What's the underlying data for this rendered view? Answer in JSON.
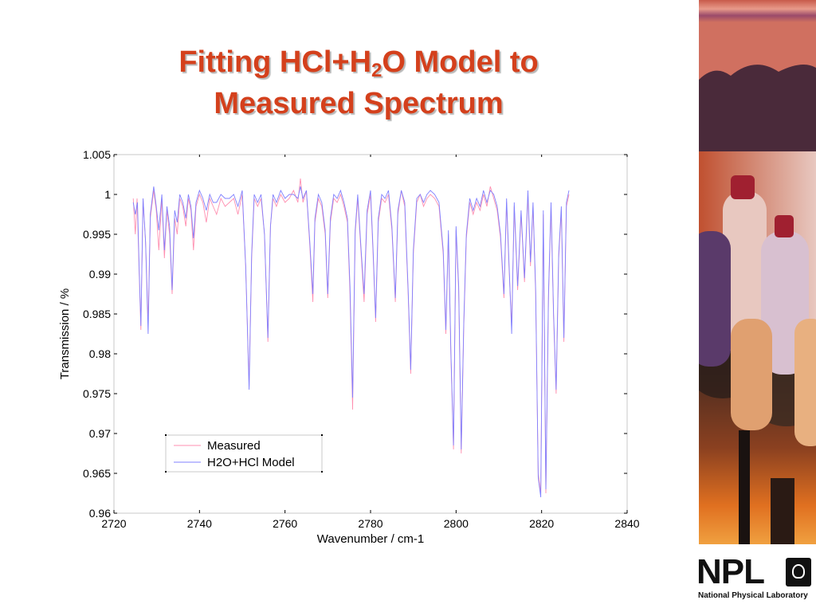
{
  "slide": {
    "title_pre": "Fitting HCl+H",
    "title_sub": "2",
    "title_post": "O Model to",
    "title_line2": "Measured Spectrum"
  },
  "logo": {
    "text": "NPL",
    "subtitle": "National Physical Laboratory"
  },
  "photo": {
    "icon": "gas-cylinders-photo"
  },
  "colors": {
    "title": "#d4401c",
    "measured": "#ff8fb0",
    "model": "#8080ff",
    "axis": "#000000"
  },
  "chart_data": {
    "type": "line",
    "title": "",
    "xlabel": "Wavenumber / cm-1",
    "ylabel": "Transmission / %",
    "xlim": [
      2720,
      2840
    ],
    "ylim": [
      0.96,
      1.005
    ],
    "xticks": [
      "2720",
      "2740",
      "2760",
      "2780",
      "2800",
      "2820",
      "2840"
    ],
    "yticks": [
      "1.005",
      "1",
      "0.995",
      "0.99",
      "0.985",
      "0.98",
      "0.975",
      "0.97",
      "0.965",
      "0.96"
    ],
    "grid": false,
    "legend_position": "lower-left",
    "series": [
      {
        "name": "Measured",
        "color": "#ff8fb0",
        "points": [
          [
            2724.5,
            0.9995
          ],
          [
            2725.0,
            0.995
          ],
          [
            2725.4,
            0.9995
          ],
          [
            2725.9,
            0.99
          ],
          [
            2726.3,
            0.983
          ],
          [
            2726.8,
            0.9995
          ],
          [
            2727.4,
            0.994
          ],
          [
            2728.0,
            0.984
          ],
          [
            2728.5,
            0.997
          ],
          [
            2729.3,
            1.0005
          ],
          [
            2729.9,
            0.998
          ],
          [
            2730.5,
            0.993
          ],
          [
            2731.2,
            0.9995
          ],
          [
            2731.8,
            0.992
          ],
          [
            2732.4,
            0.998
          ],
          [
            2733.0,
            0.995
          ],
          [
            2733.6,
            0.9875
          ],
          [
            2734.2,
            0.997
          ],
          [
            2734.8,
            0.995
          ],
          [
            2735.4,
            0.9995
          ],
          [
            2736.1,
            0.9985
          ],
          [
            2736.8,
            0.996
          ],
          [
            2737.4,
            0.9995
          ],
          [
            2738.0,
            0.998
          ],
          [
            2738.6,
            0.993
          ],
          [
            2739.2,
            0.9985
          ],
          [
            2740.0,
            1.0
          ],
          [
            2740.8,
            0.999
          ],
          [
            2741.6,
            0.9965
          ],
          [
            2742.4,
            0.9995
          ],
          [
            2743.2,
            0.9985
          ],
          [
            2744.0,
            0.9975
          ],
          [
            2745.0,
            0.9995
          ],
          [
            2746.0,
            0.9985
          ],
          [
            2747.0,
            0.999
          ],
          [
            2748.0,
            0.9995
          ],
          [
            2749.0,
            0.9975
          ],
          [
            2750.0,
            1.0
          ],
          [
            2750.8,
            0.991
          ],
          [
            2751.6,
            0.976
          ],
          [
            2752.2,
            0.992
          ],
          [
            2752.8,
            0.9995
          ],
          [
            2753.6,
            0.9985
          ],
          [
            2754.4,
            0.9995
          ],
          [
            2755.2,
            0.995
          ],
          [
            2756.0,
            0.9815
          ],
          [
            2756.6,
            0.996
          ],
          [
            2757.2,
            0.9995
          ],
          [
            2758.0,
            0.9985
          ],
          [
            2759.0,
            1.0
          ],
          [
            2760.0,
            0.999
          ],
          [
            2761.0,
            0.9995
          ],
          [
            2762.0,
            1.0005
          ],
          [
            2763.0,
            0.999
          ],
          [
            2763.6,
            1.002
          ],
          [
            2764.2,
            0.999
          ],
          [
            2765.0,
            1.0005
          ],
          [
            2765.8,
            0.9935
          ],
          [
            2766.5,
            0.9865
          ],
          [
            2767.0,
            0.9965
          ],
          [
            2767.8,
            0.9995
          ],
          [
            2768.6,
            0.9985
          ],
          [
            2769.4,
            0.995
          ],
          [
            2770.0,
            0.987
          ],
          [
            2770.6,
            0.9965
          ],
          [
            2771.4,
            0.9995
          ],
          [
            2772.2,
            0.999
          ],
          [
            2773.0,
            1.0
          ],
          [
            2773.8,
            0.9985
          ],
          [
            2774.6,
            0.9965
          ],
          [
            2775.2,
            0.9875
          ],
          [
            2775.8,
            0.973
          ],
          [
            2776.4,
            0.995
          ],
          [
            2777.0,
            0.9995
          ],
          [
            2777.8,
            0.9925
          ],
          [
            2778.5,
            0.9865
          ],
          [
            2779.2,
            0.9975
          ],
          [
            2780.0,
            1.0
          ],
          [
            2780.6,
            0.9925
          ],
          [
            2781.2,
            0.984
          ],
          [
            2781.8,
            0.9965
          ],
          [
            2782.6,
            0.9995
          ],
          [
            2783.4,
            0.999
          ],
          [
            2784.2,
            1.0
          ],
          [
            2785.0,
            0.9955
          ],
          [
            2785.8,
            0.9865
          ],
          [
            2786.4,
            0.9975
          ],
          [
            2787.2,
            1.0005
          ],
          [
            2788.0,
            0.9985
          ],
          [
            2788.8,
            0.9875
          ],
          [
            2789.4,
            0.9775
          ],
          [
            2790.0,
            0.9925
          ],
          [
            2790.8,
            0.999
          ],
          [
            2791.6,
            1.0
          ],
          [
            2792.4,
            0.9985
          ],
          [
            2793.2,
            0.9995
          ],
          [
            2794.0,
            1.0
          ],
          [
            2795.0,
            0.9995
          ],
          [
            2796.0,
            0.9985
          ],
          [
            2797.0,
            0.9925
          ],
          [
            2797.6,
            0.9825
          ],
          [
            2798.2,
            0.995
          ],
          [
            2798.8,
            0.9795
          ],
          [
            2799.4,
            0.968
          ],
          [
            2800.0,
            0.9955
          ],
          [
            2800.6,
            0.988
          ],
          [
            2801.2,
            0.9675
          ],
          [
            2801.8,
            0.9835
          ],
          [
            2802.4,
            0.9945
          ],
          [
            2803.2,
            0.999
          ],
          [
            2804.0,
            0.9975
          ],
          [
            2804.8,
            0.999
          ],
          [
            2805.6,
            0.998
          ],
          [
            2806.4,
            1.0
          ],
          [
            2807.2,
            0.9985
          ],
          [
            2808.0,
            1.001
          ],
          [
            2808.8,
            0.9995
          ],
          [
            2809.6,
            0.998
          ],
          [
            2810.4,
            0.9945
          ],
          [
            2811.2,
            0.987
          ],
          [
            2811.8,
            0.999
          ],
          [
            2812.4,
            0.9905
          ],
          [
            2813.0,
            0.9835
          ],
          [
            2813.6,
            0.9985
          ],
          [
            2814.4,
            0.988
          ],
          [
            2815.2,
            0.9975
          ],
          [
            2816.0,
            0.989
          ],
          [
            2816.8,
            1.0
          ],
          [
            2817.4,
            0.991
          ],
          [
            2818.0,
            0.9985
          ],
          [
            2818.6,
            0.9875
          ],
          [
            2819.2,
            0.965
          ],
          [
            2819.8,
            0.9625
          ],
          [
            2820.4,
            0.9975
          ],
          [
            2821.0,
            0.9625
          ],
          [
            2821.6,
            0.987
          ],
          [
            2822.2,
            0.9985
          ],
          [
            2822.8,
            0.9845
          ],
          [
            2823.4,
            0.975
          ],
          [
            2824.0,
            0.992
          ],
          [
            2824.6,
            0.998
          ],
          [
            2825.2,
            0.9815
          ],
          [
            2825.8,
            0.9985
          ],
          [
            2826.4,
            1.0
          ]
        ]
      },
      {
        "name": "H2O+HCl Model",
        "color": "#8080ff",
        "points": [
          [
            2724.5,
            0.999
          ],
          [
            2725.0,
            0.9975
          ],
          [
            2725.5,
            0.999
          ],
          [
            2725.9,
            0.9905
          ],
          [
            2726.3,
            0.9835
          ],
          [
            2726.8,
            0.9995
          ],
          [
            2727.4,
            0.994
          ],
          [
            2728.0,
            0.9825
          ],
          [
            2728.5,
            0.9975
          ],
          [
            2729.3,
            1.001
          ],
          [
            2729.9,
            0.9985
          ],
          [
            2730.5,
            0.9955
          ],
          [
            2731.2,
            1.0
          ],
          [
            2731.8,
            0.993
          ],
          [
            2732.4,
            0.9985
          ],
          [
            2733.0,
            0.996
          ],
          [
            2733.6,
            0.988
          ],
          [
            2734.2,
            0.998
          ],
          [
            2734.8,
            0.9965
          ],
          [
            2735.4,
            1.0
          ],
          [
            2736.1,
            0.999
          ],
          [
            2736.8,
            0.997
          ],
          [
            2737.4,
            1.0
          ],
          [
            2738.0,
            0.9985
          ],
          [
            2738.6,
            0.9945
          ],
          [
            2739.2,
            0.999
          ],
          [
            2740.0,
            1.0005
          ],
          [
            2740.8,
            0.9995
          ],
          [
            2741.6,
            0.998
          ],
          [
            2742.4,
            1.0
          ],
          [
            2743.2,
            0.999
          ],
          [
            2744.0,
            0.999
          ],
          [
            2745.0,
            1.0
          ],
          [
            2746.0,
            0.9995
          ],
          [
            2747.0,
            0.9995
          ],
          [
            2748.0,
            1.0
          ],
          [
            2749.0,
            0.9985
          ],
          [
            2750.0,
            1.0005
          ],
          [
            2750.8,
            0.991
          ],
          [
            2751.6,
            0.9755
          ],
          [
            2752.2,
            0.9925
          ],
          [
            2752.8,
            1.0
          ],
          [
            2753.6,
            0.999
          ],
          [
            2754.4,
            1.0
          ],
          [
            2755.2,
            0.995
          ],
          [
            2756.0,
            0.982
          ],
          [
            2756.6,
            0.996
          ],
          [
            2757.2,
            1.0
          ],
          [
            2758.0,
            0.999
          ],
          [
            2759.0,
            1.0005
          ],
          [
            2760.0,
            0.9995
          ],
          [
            2761.0,
            1.0
          ],
          [
            2762.0,
            1.0
          ],
          [
            2763.0,
            0.9995
          ],
          [
            2763.6,
            1.001
          ],
          [
            2764.2,
            0.9995
          ],
          [
            2765.0,
            1.0005
          ],
          [
            2765.8,
            0.994
          ],
          [
            2766.5,
            0.9875
          ],
          [
            2767.0,
            0.997
          ],
          [
            2767.8,
            1.0
          ],
          [
            2768.6,
            0.999
          ],
          [
            2769.4,
            0.9955
          ],
          [
            2770.0,
            0.9875
          ],
          [
            2770.6,
            0.997
          ],
          [
            2771.4,
            1.0
          ],
          [
            2772.2,
            0.9995
          ],
          [
            2773.0,
            1.0005
          ],
          [
            2773.8,
            0.999
          ],
          [
            2774.6,
            0.997
          ],
          [
            2775.2,
            0.9885
          ],
          [
            2775.8,
            0.9745
          ],
          [
            2776.4,
            0.9955
          ],
          [
            2777.0,
            1.0
          ],
          [
            2777.8,
            0.993
          ],
          [
            2778.5,
            0.9875
          ],
          [
            2779.2,
            0.998
          ],
          [
            2780.0,
            1.0005
          ],
          [
            2780.6,
            0.993
          ],
          [
            2781.2,
            0.9845
          ],
          [
            2781.8,
            0.997
          ],
          [
            2782.6,
            1.0
          ],
          [
            2783.4,
            0.9995
          ],
          [
            2784.2,
            1.0005
          ],
          [
            2785.0,
            0.996
          ],
          [
            2785.8,
            0.987
          ],
          [
            2786.4,
            0.998
          ],
          [
            2787.2,
            1.0005
          ],
          [
            2788.0,
            0.999
          ],
          [
            2788.8,
            0.988
          ],
          [
            2789.4,
            0.978
          ],
          [
            2790.0,
            0.993
          ],
          [
            2790.8,
            0.9995
          ],
          [
            2791.6,
            1.0
          ],
          [
            2792.4,
            0.999
          ],
          [
            2793.2,
            1.0
          ],
          [
            2794.0,
            1.0005
          ],
          [
            2795.0,
            1.0
          ],
          [
            2796.0,
            0.999
          ],
          [
            2797.0,
            0.993
          ],
          [
            2797.6,
            0.983
          ],
          [
            2798.2,
            0.9955
          ],
          [
            2798.8,
            0.98
          ],
          [
            2799.4,
            0.9685
          ],
          [
            2800.0,
            0.996
          ],
          [
            2800.6,
            0.9885
          ],
          [
            2801.2,
            0.968
          ],
          [
            2801.8,
            0.984
          ],
          [
            2802.4,
            0.995
          ],
          [
            2803.2,
            0.9995
          ],
          [
            2804.0,
            0.998
          ],
          [
            2804.8,
            0.9995
          ],
          [
            2805.6,
            0.9985
          ],
          [
            2806.4,
            1.0005
          ],
          [
            2807.2,
            0.999
          ],
          [
            2808.0,
            1.0005
          ],
          [
            2808.8,
            1.0
          ],
          [
            2809.6,
            0.9985
          ],
          [
            2810.4,
            0.995
          ],
          [
            2811.2,
            0.9875
          ],
          [
            2811.8,
            0.9995
          ],
          [
            2812.4,
            0.991
          ],
          [
            2813.0,
            0.9825
          ],
          [
            2813.6,
            0.999
          ],
          [
            2814.4,
            0.9885
          ],
          [
            2815.2,
            0.998
          ],
          [
            2816.0,
            0.9895
          ],
          [
            2816.8,
            1.0005
          ],
          [
            2817.4,
            0.9915
          ],
          [
            2818.0,
            0.999
          ],
          [
            2818.6,
            0.988
          ],
          [
            2819.2,
            0.9645
          ],
          [
            2819.8,
            0.962
          ],
          [
            2820.4,
            0.998
          ],
          [
            2821.0,
            0.963
          ],
          [
            2821.6,
            0.9875
          ],
          [
            2822.2,
            0.999
          ],
          [
            2822.8,
            0.985
          ],
          [
            2823.4,
            0.9755
          ],
          [
            2824.0,
            0.9925
          ],
          [
            2824.6,
            0.9985
          ],
          [
            2825.2,
            0.982
          ],
          [
            2825.8,
            0.999
          ],
          [
            2826.4,
            1.0005
          ]
        ]
      }
    ]
  }
}
